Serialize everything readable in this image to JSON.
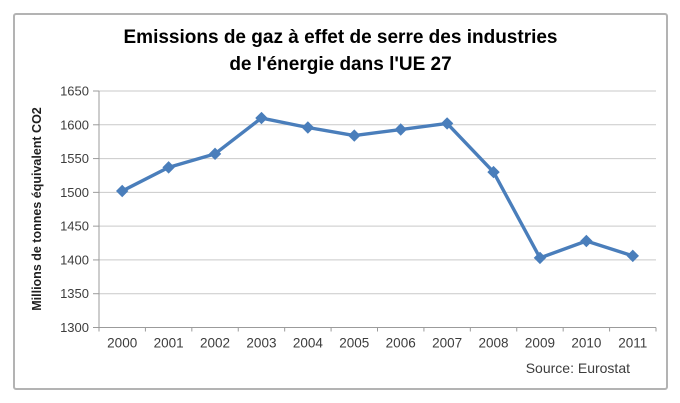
{
  "chart": {
    "title_line1": "Emissions de gaz à effet de serre des industries",
    "title_line2": "de l'énergie dans l'UE 27",
    "ylabel": "Millions de tonnes équivalent CO2",
    "source": "Source: Eurostat"
  },
  "chart_data": {
    "type": "line",
    "title": "Emissions de gaz à effet de serre des industries de l'énergie dans l'UE 27",
    "categories": [
      "2000",
      "2001",
      "2002",
      "2003",
      "2004",
      "2005",
      "2006",
      "2007",
      "2008",
      "2009",
      "2010",
      "2011"
    ],
    "values": [
      1502,
      1537,
      1557,
      1610,
      1596,
      1584,
      1593,
      1602,
      1530,
      1403,
      1428,
      1406
    ],
    "series": [
      {
        "name": "Emissions de gaz à effet de serre des industries de l'énergie",
        "values": [
          1502,
          1537,
          1557,
          1610,
          1596,
          1584,
          1593,
          1602,
          1530,
          1403,
          1428,
          1406
        ]
      }
    ],
    "xlabel": "",
    "ylabel": "Millions de tonnes équivalent CO2",
    "ylim": [
      1300,
      1650
    ],
    "ytick_step": 50,
    "grid": true,
    "legend": false,
    "marker": "diamond",
    "source": "Source: Eurostat",
    "colors": {
      "line": "#4a7ebb",
      "marker": "#4a7ebb",
      "gridline": "#c9c9c9",
      "axis": "#9b9b9b",
      "tick_label": "#3d3d3d",
      "title": "#000000"
    }
  }
}
